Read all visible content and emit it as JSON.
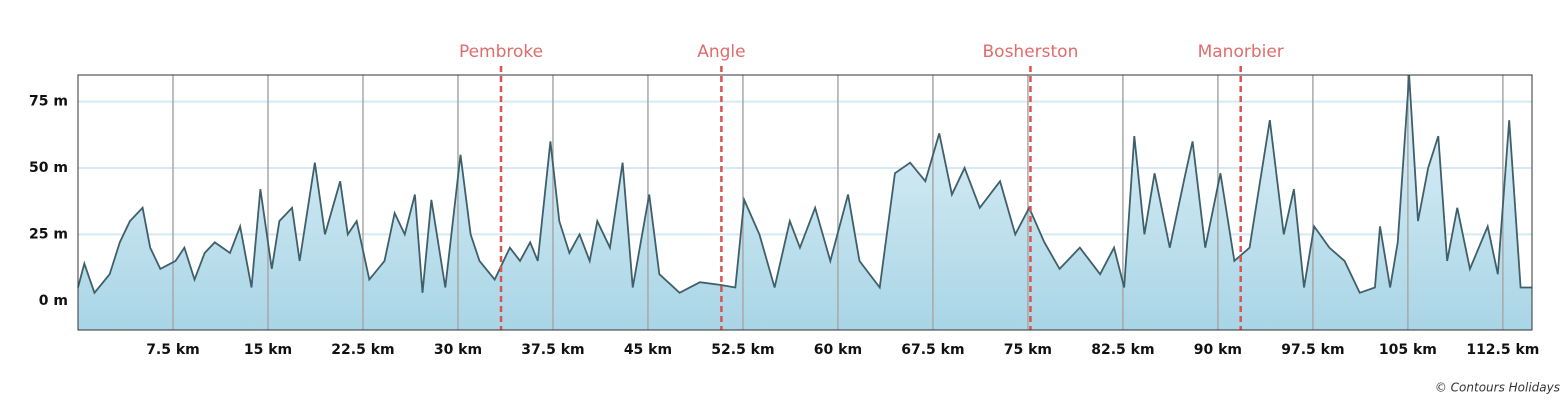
{
  "chart_data": {
    "type": "area",
    "x": [
      0,
      0.5,
      1.3,
      2.5,
      3.3,
      4.1,
      5.1,
      5.7,
      6.5,
      7.7,
      8.4,
      9.2,
      10,
      10.8,
      12,
      12.8,
      13.7,
      14.4,
      15.3,
      15.9,
      16.9,
      17.5,
      18.7,
      19.5,
      20.7,
      21.3,
      22,
      23,
      24.2,
      25,
      25.8,
      26.6,
      27.2,
      27.9,
      29,
      30.2,
      31,
      31.7,
      32.9,
      34.1,
      34.9,
      35.7,
      36.3,
      37.3,
      38,
      38.8,
      39.6,
      40.4,
      41,
      42,
      43,
      43.8,
      45.1,
      45.9,
      47.5,
      49.1,
      50.7,
      51.9,
      52.6,
      53.8,
      55,
      56.2,
      57,
      58.2,
      59.4,
      60.8,
      61.7,
      63.3,
      64.5,
      65.7,
      66.9,
      68,
      69,
      70,
      71.2,
      72.8,
      74,
      75.1,
      76.3,
      77.5,
      79.1,
      80.7,
      81.8,
      82.6,
      83.4,
      84.2,
      85,
      86.2,
      87.4,
      88,
      89,
      90.2,
      91.3,
      92.5,
      94.1,
      95.2,
      96,
      96.8,
      97.6,
      98.8,
      100,
      101.2,
      102.4,
      102.8,
      103.6,
      104.2,
      105.1,
      105.8,
      106.6,
      107.4,
      108.1,
      108.9,
      109.9,
      111.3,
      112.1,
      113,
      113.9,
      114.8
    ],
    "series": [
      {
        "color": "#3f5f6b",
        "values": [
          5,
          14,
          3,
          10,
          22,
          30,
          35,
          20,
          12,
          15,
          20,
          8,
          18,
          22,
          18,
          28,
          5,
          42,
          12,
          30,
          35,
          15,
          52,
          25,
          45,
          25,
          30,
          8,
          15,
          33,
          25,
          40,
          3,
          38,
          5,
          55,
          25,
          15,
          8,
          20,
          15,
          22,
          15,
          60,
          30,
          18,
          25,
          15,
          30,
          20,
          52,
          5,
          40,
          10,
          3,
          7,
          6,
          5,
          38,
          25,
          5,
          30,
          20,
          35,
          15,
          40,
          15,
          5,
          48,
          52,
          45,
          63,
          40,
          50,
          35,
          45,
          25,
          35,
          22,
          12,
          20,
          10,
          20,
          5,
          62,
          25,
          48,
          20,
          47,
          60,
          20,
          48,
          15,
          20,
          68,
          25,
          42,
          5,
          28,
          20,
          15,
          3,
          5,
          28,
          5,
          22,
          85,
          30,
          50,
          62,
          15,
          35,
          12,
          28,
          10,
          68,
          5,
          5
        ]
      }
    ],
    "xlim": [
      0,
      114.8
    ],
    "ylim": [
      -11,
      85
    ],
    "xticks": [
      {
        "value": 7.5,
        "label": "7.5 km"
      },
      {
        "value": 15,
        "label": "15 km"
      },
      {
        "value": 22.5,
        "label": "22.5 km"
      },
      {
        "value": 30,
        "label": "30 km"
      },
      {
        "value": 37.5,
        "label": "37.5 km"
      },
      {
        "value": 45,
        "label": "45 km"
      },
      {
        "value": 52.5,
        "label": "52.5 km"
      },
      {
        "value": 60,
        "label": "60 km"
      },
      {
        "value": 67.5,
        "label": "67.5 km"
      },
      {
        "value": 75,
        "label": "75 km"
      },
      {
        "value": 82.5,
        "label": "82.5 km"
      },
      {
        "value": 90,
        "label": "90 km"
      },
      {
        "value": 97.5,
        "label": "97.5 km"
      },
      {
        "value": 105,
        "label": "105 km"
      },
      {
        "value": 112.5,
        "label": "112.5 km"
      }
    ],
    "yticks": [
      {
        "value": 0,
        "label": "0 m"
      },
      {
        "value": 25,
        "label": "25 m"
      },
      {
        "value": 50,
        "label": "50 m"
      },
      {
        "value": 75,
        "label": "75 m"
      }
    ],
    "grid": true,
    "annotations": [
      {
        "label": "Pembroke",
        "x": 33.4,
        "color": "#d9534f"
      },
      {
        "label": "Angle",
        "x": 50.8,
        "color": "#d9534f"
      },
      {
        "label": "Bosherston",
        "x": 75.2,
        "color": "#d9534f"
      },
      {
        "label": "Manorbier",
        "x": 91.8,
        "color": "#d9534f"
      }
    ],
    "credit": "© Contours Holidays"
  }
}
